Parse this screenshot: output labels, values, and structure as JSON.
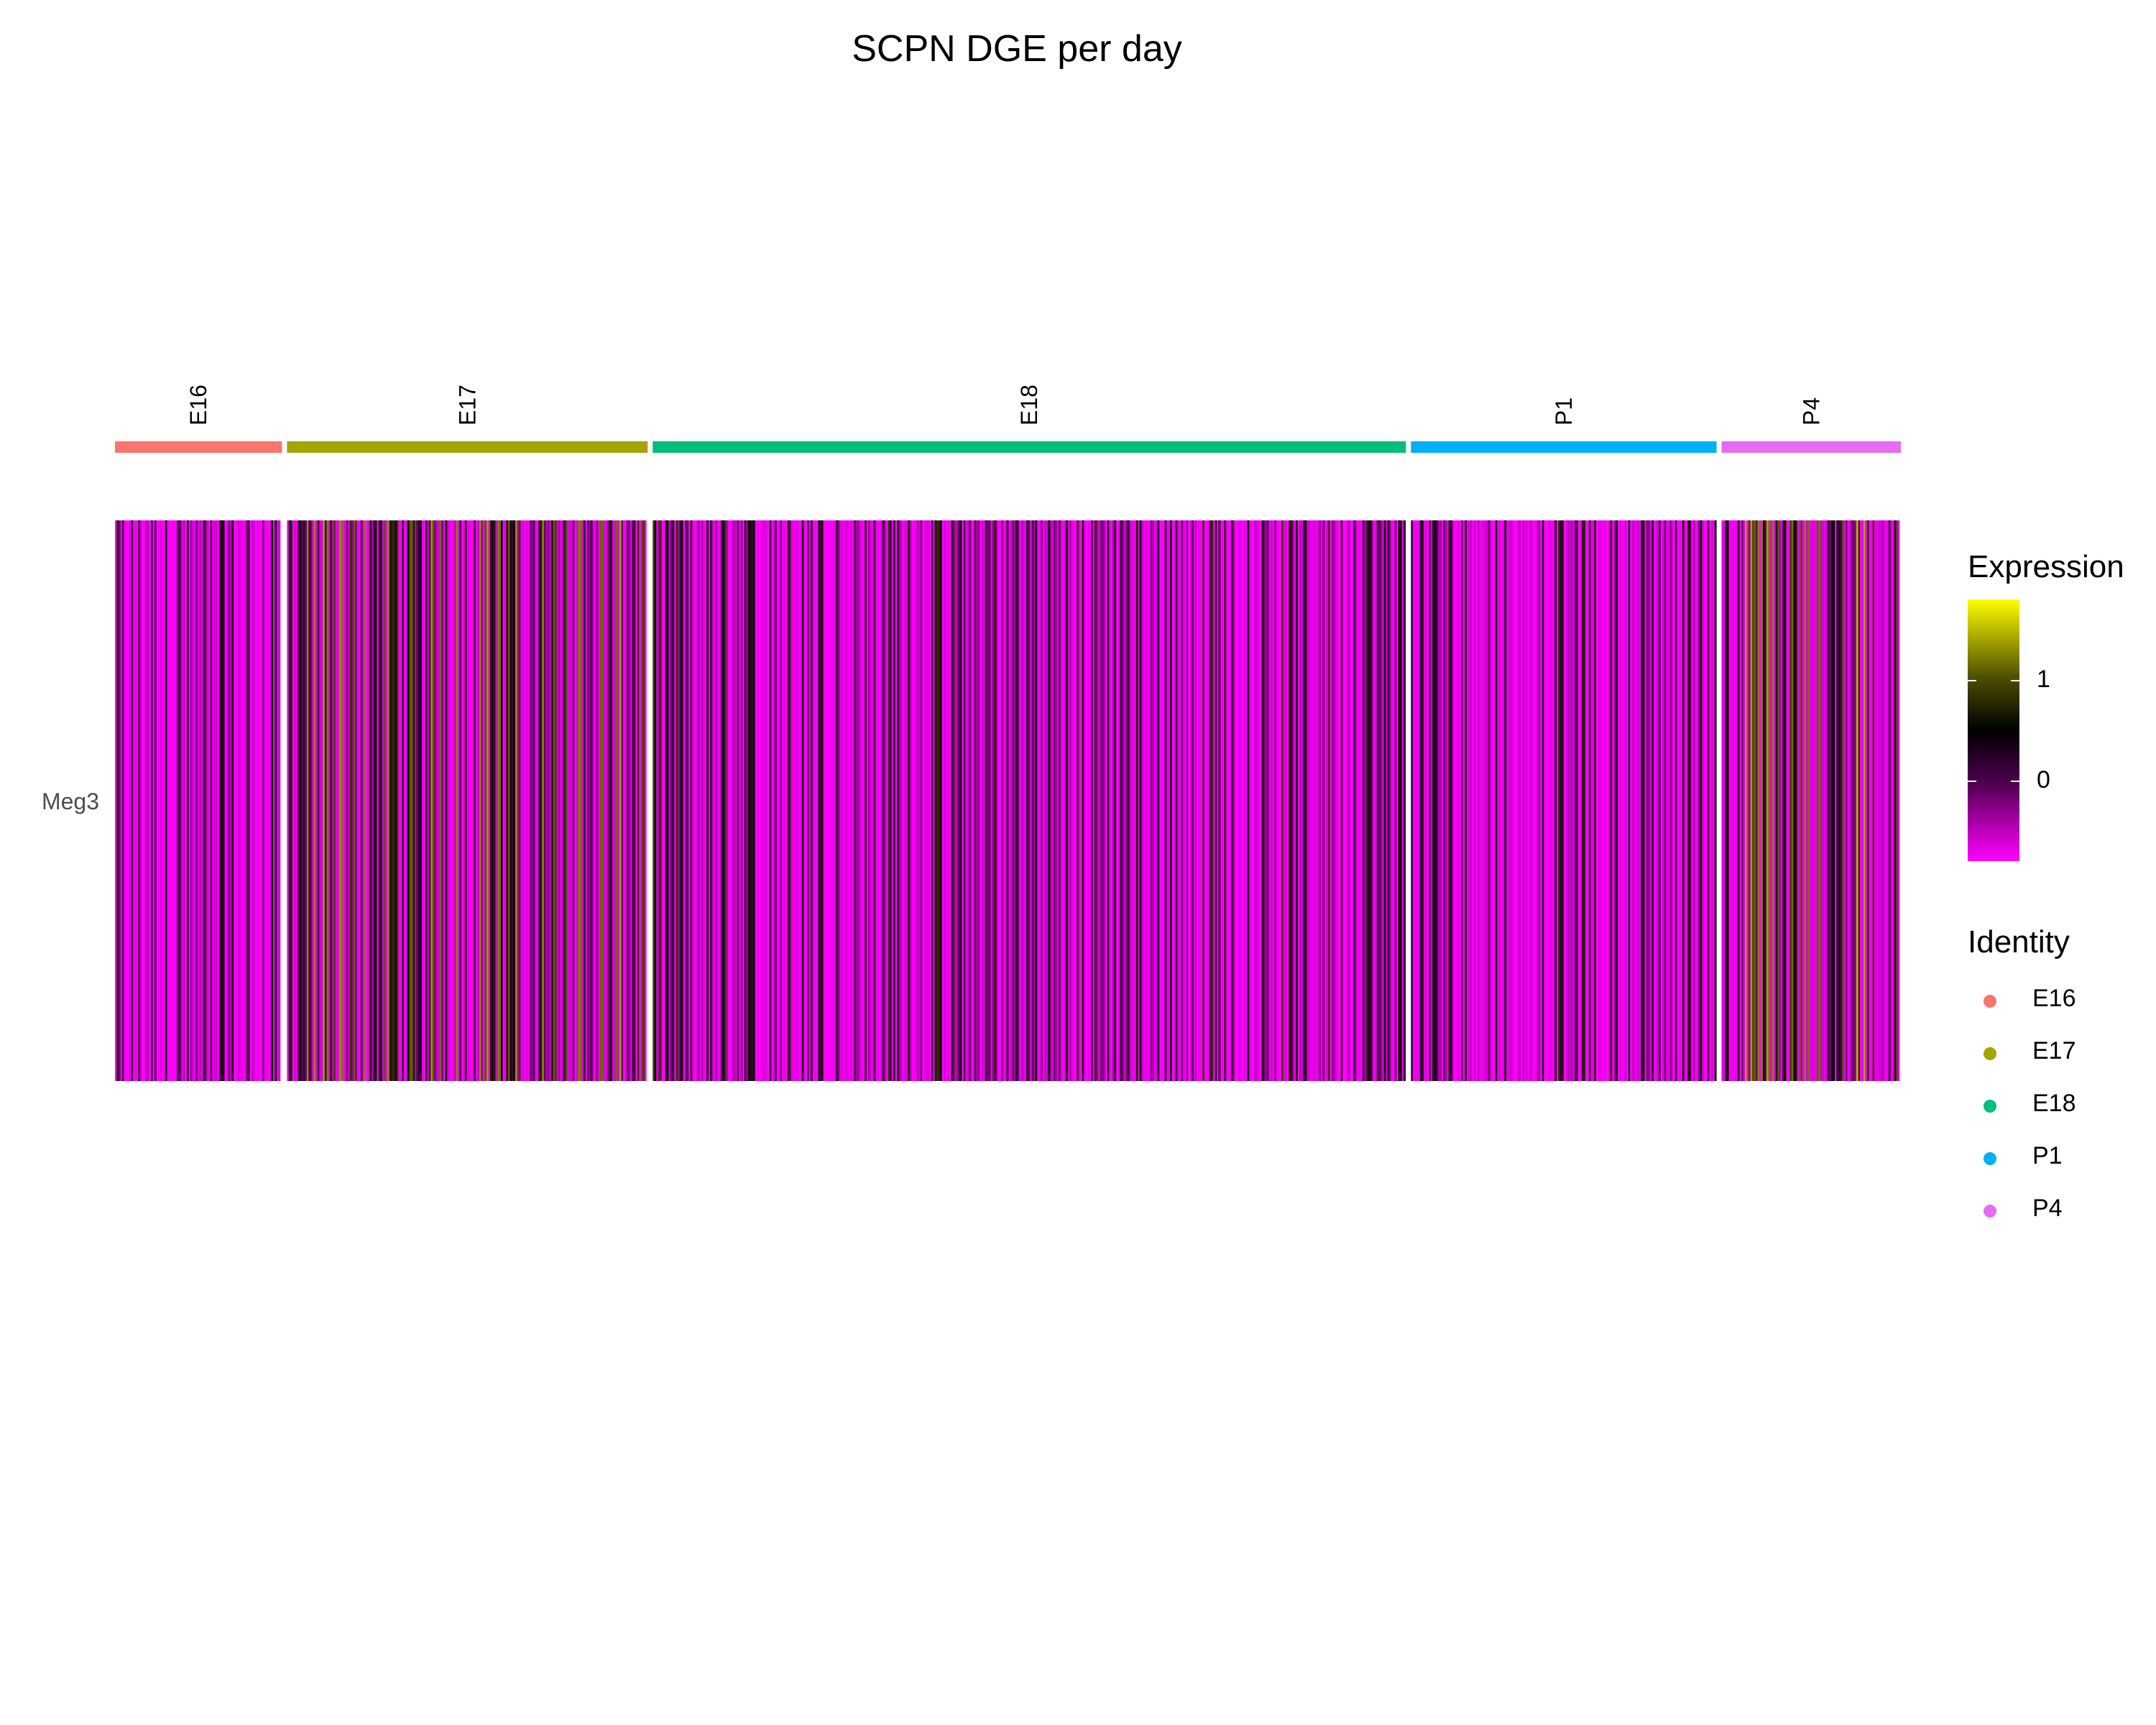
{
  "chart_data": {
    "type": "heatmap",
    "title": "SCPN DGE per day",
    "genes": [
      "Meg3"
    ],
    "groups": [
      {
        "name": "E16",
        "color": "#F8766D",
        "fraction": 0.094,
        "mean": -0.45
      },
      {
        "name": "E17",
        "color": "#A3A500",
        "fraction": 0.203,
        "mean": 0.35
      },
      {
        "name": "E18",
        "color": "#00BF7D",
        "fraction": 0.424,
        "mean": -0.15
      },
      {
        "name": "P1",
        "color": "#00B0F6",
        "fraction": 0.172,
        "mean": -0.25
      },
      {
        "name": "P4",
        "color": "#E76BF3",
        "fraction": 0.101,
        "mean": 0.45
      }
    ],
    "colorbar": {
      "title": "Expression",
      "min": -0.8,
      "max": 1.8,
      "ticks": [
        {
          "value": 1,
          "label": "1"
        },
        {
          "value": 0,
          "label": "0"
        }
      ],
      "colors": [
        "#FF00FF",
        "#000000",
        "#FFFF00"
      ]
    },
    "identity_legend": {
      "title": "Identity",
      "items": [
        {
          "name": "E16",
          "color": "#F8766D"
        },
        {
          "name": "E17",
          "color": "#A3A500"
        },
        {
          "name": "E18",
          "color": "#00BF7D"
        },
        {
          "name": "P1",
          "color": "#00B0F6"
        },
        {
          "name": "P4",
          "color": "#E76BF3"
        }
      ]
    }
  }
}
